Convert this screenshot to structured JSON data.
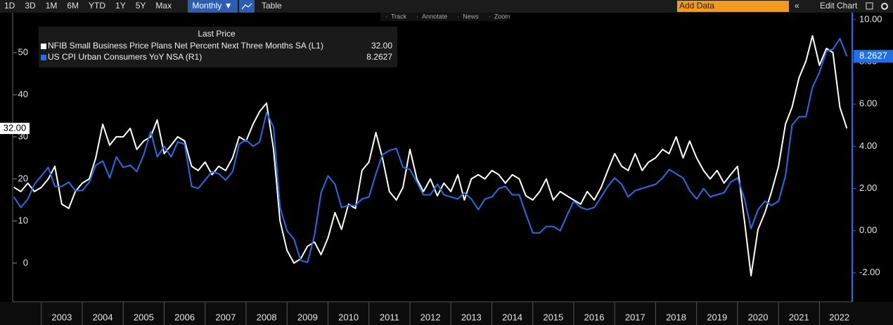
{
  "toolbar": {
    "ranges": [
      "1D",
      "3D",
      "1M",
      "6M",
      "YTD",
      "1Y",
      "5Y",
      "Max"
    ],
    "frequency": "Monthly ▼",
    "view": "Table",
    "add_data": "Add Data",
    "edit": "Edit Chart",
    "tools": [
      "Track",
      "Annotate",
      "News",
      "Zoom"
    ]
  },
  "chart_data": {
    "type": "line",
    "legend_title": "Last Price",
    "grid": false,
    "x": [
      2002.33,
      2002.5,
      2002.67,
      2002.83,
      2003,
      2003.17,
      2003.33,
      2003.5,
      2003.67,
      2003.83,
      2004,
      2004.17,
      2004.33,
      2004.5,
      2004.67,
      2004.83,
      2005,
      2005.17,
      2005.33,
      2005.5,
      2005.67,
      2005.83,
      2006,
      2006.17,
      2006.33,
      2006.5,
      2006.67,
      2006.83,
      2007,
      2007.17,
      2007.33,
      2007.5,
      2007.67,
      2007.83,
      2008,
      2008.17,
      2008.33,
      2008.5,
      2008.67,
      2008.83,
      2009,
      2009.17,
      2009.33,
      2009.5,
      2009.67,
      2009.83,
      2010,
      2010.17,
      2010.33,
      2010.5,
      2010.67,
      2010.83,
      2011,
      2011.17,
      2011.33,
      2011.5,
      2011.67,
      2011.83,
      2012,
      2012.17,
      2012.33,
      2012.5,
      2012.67,
      2012.83,
      2013,
      2013.17,
      2013.33,
      2013.5,
      2013.67,
      2013.83,
      2014,
      2014.17,
      2014.33,
      2014.5,
      2014.67,
      2014.83,
      2015,
      2015.17,
      2015.33,
      2015.5,
      2015.67,
      2015.83,
      2016,
      2016.17,
      2016.33,
      2016.5,
      2016.67,
      2016.83,
      2017,
      2017.17,
      2017.33,
      2017.5,
      2017.67,
      2017.83,
      2018,
      2018.17,
      2018.33,
      2018.5,
      2018.67,
      2018.83,
      2019,
      2019.17,
      2019.33,
      2019.5,
      2019.67,
      2019.83,
      2020,
      2020.17,
      2020.33,
      2020.5,
      2020.67,
      2020.83,
      2021,
      2021.17,
      2021.33,
      2021.5,
      2021.67,
      2021.83,
      2022,
      2022.17,
      2022.33,
      2022.5,
      2022.67
    ],
    "series": [
      {
        "name": "NFIB Small Business Price Plans Net Percent Next Three Months SA  (L1)",
        "color": "#ffffff",
        "axis": "y",
        "last_label": "32.00",
        "values": [
          18,
          17,
          19,
          17,
          18,
          20,
          23,
          14,
          13,
          17,
          19,
          20,
          25,
          33,
          28,
          30,
          30,
          32,
          27,
          29,
          30,
          34,
          26,
          28,
          30,
          29,
          23,
          22,
          24,
          21,
          23,
          22,
          25,
          30,
          29,
          33,
          36,
          38,
          27,
          10,
          3,
          0,
          1,
          4,
          5,
          2,
          6,
          12,
          8,
          14,
          13,
          22,
          24,
          31,
          25,
          17,
          15,
          18,
          27,
          20,
          17,
          20,
          16,
          19,
          17,
          21,
          15,
          20,
          21,
          20,
          22,
          21,
          19,
          21,
          20,
          16,
          15,
          17,
          20,
          15,
          17,
          16,
          15,
          14,
          17,
          15,
          18,
          22,
          26,
          23,
          22,
          26,
          22,
          24,
          25,
          27,
          26,
          30,
          25,
          29,
          25,
          22,
          20,
          22,
          19,
          21,
          23,
          10,
          -3,
          8,
          12,
          17,
          23,
          33,
          37,
          44,
          48,
          54,
          47,
          51,
          50,
          37,
          32
        ]
      },
      {
        "name": "US CPI Urban Consumers YoY NSA  (R1)",
        "color": "#1f6fe8",
        "axis": "y2",
        "last_label": "8.2627",
        "values": [
          1.6,
          1.1,
          1.5,
          2.2,
          2.6,
          3.0,
          2.1,
          2.1,
          2.3,
          1.9,
          1.9,
          2.3,
          3.1,
          3.3,
          2.5,
          3.5,
          3.0,
          3.1,
          2.8,
          3.6,
          4.7,
          3.5,
          4.0,
          3.5,
          4.2,
          4.1,
          2.1,
          2.0,
          2.4,
          2.8,
          2.7,
          2.4,
          2.8,
          4.1,
          4.3,
          4.0,
          4.2,
          5.6,
          4.9,
          1.1,
          0.0,
          -0.4,
          -1.4,
          -1.5,
          -0.2,
          1.8,
          2.6,
          2.2,
          1.1,
          1.2,
          1.2,
          1.5,
          1.6,
          2.7,
          3.6,
          3.8,
          3.9,
          3.0,
          2.9,
          2.3,
          1.7,
          1.7,
          2.2,
          1.7,
          1.6,
          1.5,
          1.8,
          1.5,
          1.0,
          1.5,
          1.6,
          2.0,
          2.1,
          1.7,
          1.7,
          0.8,
          -0.1,
          -0.1,
          0.2,
          0.2,
          0.0,
          0.7,
          1.4,
          1.1,
          1.0,
          1.1,
          1.6,
          2.1,
          2.5,
          2.2,
          1.6,
          1.9,
          2.0,
          2.1,
          2.2,
          2.5,
          2.9,
          2.7,
          2.5,
          1.9,
          1.5,
          2.0,
          1.6,
          1.7,
          1.8,
          2.3,
          2.5,
          1.5,
          0.1,
          1.0,
          1.4,
          1.2,
          1.4,
          2.6,
          5.0,
          5.4,
          5.4,
          6.8,
          7.5,
          8.5,
          8.6,
          9.1,
          8.2627
        ]
      }
    ],
    "xlim": [
      2002.3,
      2022.8
    ],
    "xticks": [
      2003,
      2004,
      2005,
      2006,
      2007,
      2008,
      2009,
      2010,
      2011,
      2012,
      2013,
      2014,
      2015,
      2016,
      2017,
      2018,
      2019,
      2020,
      2021,
      2022
    ],
    "ylim": [
      -9.2,
      59.5
    ],
    "yticks": [
      0,
      10,
      20,
      30,
      40,
      50
    ],
    "y2lim": [
      -3.37,
      10.33
    ],
    "y2ticks": [
      {
        "value": -2,
        "label": "-2.00"
      },
      {
        "value": 0,
        "label": "0.00"
      },
      {
        "value": 2,
        "label": "2.00"
      },
      {
        "value": 4,
        "label": "4.00"
      },
      {
        "value": 6,
        "label": "6.00"
      },
      {
        "value": 8,
        "label": "8.00"
      },
      {
        "value": 10,
        "label": "10.00"
      }
    ]
  }
}
